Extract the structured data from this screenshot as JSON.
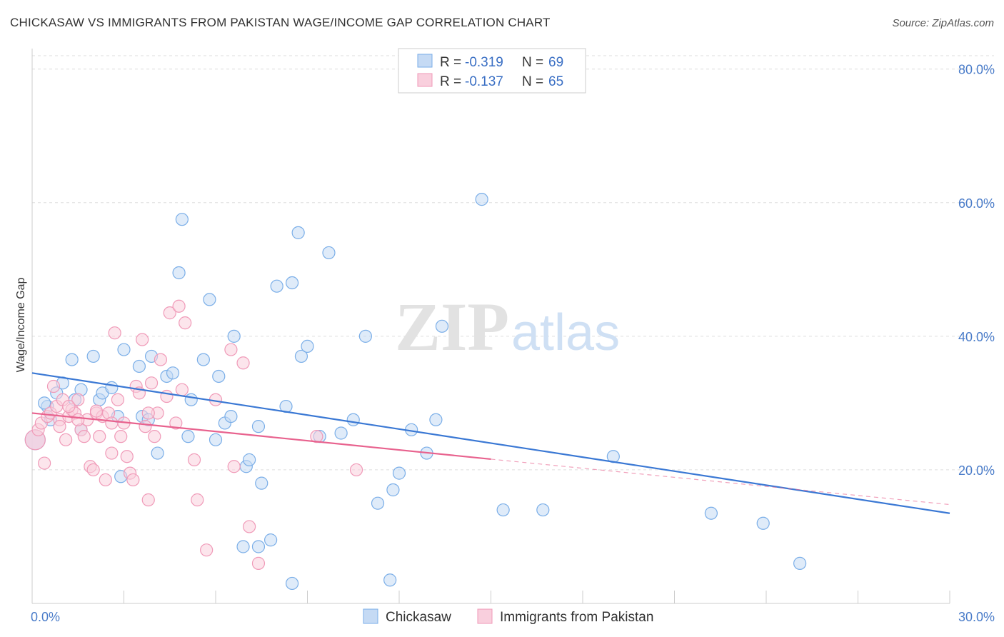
{
  "title": "CHICKASAW VS IMMIGRANTS FROM PAKISTAN WAGE/INCOME GAP CORRELATION CHART",
  "source": "Source: ZipAtlas.com",
  "chart_data": {
    "type": "scatter",
    "ylabel": "Wage/Income Gap",
    "xlim": [
      0,
      30
    ],
    "ylim": [
      0,
      82
    ],
    "x_tick_labels": [
      "0.0%",
      "30.0%"
    ],
    "y_ticks": [
      20,
      40,
      60,
      80
    ],
    "y_tick_labels": [
      "20.0%",
      "40.0%",
      "60.0%",
      "80.0%"
    ],
    "grid": true,
    "legend": {
      "position": "top-center",
      "entries": [
        {
          "r_label": "R =",
          "r_value": "-0.319",
          "n_label": "N =",
          "n_value": "69"
        },
        {
          "r_label": "R =",
          "r_value": "-0.137",
          "n_label": "N =",
          "n_value": "65"
        }
      ]
    },
    "series": [
      {
        "name": "Chickasaw",
        "color": "#7aaee8",
        "fill": "#c5daf4",
        "line_color": "#3a78d4",
        "trend": {
          "x0": 0,
          "y0": 34.5,
          "x1": 30,
          "y1": 13.5
        },
        "points": [
          [
            0.1,
            24.5
          ],
          [
            0.5,
            29.5
          ],
          [
            0.6,
            27.5
          ],
          [
            0.4,
            30.0
          ],
          [
            0.8,
            31.5
          ],
          [
            1.0,
            33.0
          ],
          [
            1.3,
            36.5
          ],
          [
            1.4,
            30.5
          ],
          [
            1.6,
            26.0
          ],
          [
            1.6,
            32.0
          ],
          [
            2.0,
            37.0
          ],
          [
            2.2,
            30.5
          ],
          [
            2.3,
            31.5
          ],
          [
            2.6,
            32.3
          ],
          [
            2.8,
            28.0
          ],
          [
            2.9,
            19.0
          ],
          [
            3.0,
            38.0
          ],
          [
            3.5,
            35.5
          ],
          [
            3.6,
            28.0
          ],
          [
            3.8,
            27.5
          ],
          [
            3.9,
            37.0
          ],
          [
            4.1,
            22.5
          ],
          [
            4.4,
            34.0
          ],
          [
            4.6,
            34.5
          ],
          [
            4.8,
            49.5
          ],
          [
            4.9,
            57.5
          ],
          [
            5.1,
            25.0
          ],
          [
            5.2,
            30.5
          ],
          [
            5.6,
            36.5
          ],
          [
            5.8,
            45.5
          ],
          [
            6.0,
            24.5
          ],
          [
            6.1,
            34.0
          ],
          [
            6.3,
            27.0
          ],
          [
            6.5,
            28.0
          ],
          [
            6.6,
            40.0
          ],
          [
            7.0,
            20.5
          ],
          [
            7.1,
            21.5
          ],
          [
            7.4,
            26.5
          ],
          [
            7.5,
            18.0
          ],
          [
            7.8,
            9.5
          ],
          [
            8.0,
            47.5
          ],
          [
            8.3,
            29.5
          ],
          [
            8.5,
            48.0
          ],
          [
            8.7,
            55.5
          ],
          [
            8.8,
            37.0
          ],
          [
            9.0,
            38.5
          ],
          [
            9.4,
            25.0
          ],
          [
            9.7,
            52.5
          ],
          [
            10.1,
            25.5
          ],
          [
            10.5,
            27.5
          ],
          [
            10.9,
            40.0
          ],
          [
            11.3,
            15.0
          ],
          [
            11.7,
            3.5
          ],
          [
            11.8,
            17.0
          ],
          [
            12.0,
            19.5
          ],
          [
            12.4,
            26.0
          ],
          [
            12.9,
            22.5
          ],
          [
            13.2,
            27.5
          ],
          [
            13.4,
            41.5
          ],
          [
            14.7,
            60.5
          ],
          [
            15.4,
            14.0
          ],
          [
            16.7,
            14.0
          ],
          [
            19.0,
            22.0
          ],
          [
            22.2,
            13.5
          ],
          [
            23.9,
            12.0
          ],
          [
            25.1,
            6.0
          ],
          [
            7.4,
            8.5
          ],
          [
            8.5,
            3.0
          ],
          [
            6.9,
            8.5
          ]
        ]
      },
      {
        "name": "Immigrants from Pakistan",
        "color": "#f09ab8",
        "fill": "#f9cfdd",
        "line_color": "#e8628e",
        "trend": {
          "x0": 0,
          "y0": 28.5,
          "x1": 15,
          "y1": 21.6
        },
        "trend_ext": {
          "x0": 15,
          "y0": 21.6,
          "x1": 30,
          "y1": 14.8
        },
        "points": [
          [
            0.1,
            24.5
          ],
          [
            0.2,
            26.0
          ],
          [
            0.3,
            27.0
          ],
          [
            0.4,
            21.0
          ],
          [
            0.5,
            28.0
          ],
          [
            0.6,
            28.5
          ],
          [
            0.7,
            32.5
          ],
          [
            0.8,
            29.5
          ],
          [
            0.9,
            27.5
          ],
          [
            1.0,
            30.5
          ],
          [
            1.1,
            24.5
          ],
          [
            1.2,
            28.0
          ],
          [
            1.3,
            29.0
          ],
          [
            1.4,
            28.5
          ],
          [
            1.5,
            30.5
          ],
          [
            1.6,
            26.0
          ],
          [
            1.7,
            25.0
          ],
          [
            1.8,
            27.5
          ],
          [
            1.9,
            20.5
          ],
          [
            2.0,
            20.0
          ],
          [
            2.1,
            28.5
          ],
          [
            2.2,
            25.0
          ],
          [
            2.3,
            28.0
          ],
          [
            2.4,
            18.5
          ],
          [
            2.5,
            28.5
          ],
          [
            2.6,
            22.5
          ],
          [
            2.7,
            40.5
          ],
          [
            2.8,
            30.5
          ],
          [
            2.9,
            25.0
          ],
          [
            3.0,
            27.0
          ],
          [
            3.1,
            22.0
          ],
          [
            3.2,
            19.5
          ],
          [
            3.3,
            18.5
          ],
          [
            3.4,
            32.5
          ],
          [
            3.5,
            31.5
          ],
          [
            3.6,
            39.5
          ],
          [
            3.7,
            26.5
          ],
          [
            3.8,
            15.5
          ],
          [
            3.9,
            33.0
          ],
          [
            4.0,
            25.0
          ],
          [
            4.1,
            28.5
          ],
          [
            4.2,
            36.5
          ],
          [
            4.4,
            31.0
          ],
          [
            4.5,
            43.5
          ],
          [
            4.7,
            27.0
          ],
          [
            4.8,
            44.5
          ],
          [
            4.9,
            32.0
          ],
          [
            5.0,
            42.0
          ],
          [
            5.3,
            21.5
          ],
          [
            5.4,
            15.5
          ],
          [
            5.7,
            8.0
          ],
          [
            6.0,
            30.5
          ],
          [
            6.5,
            38.0
          ],
          [
            6.6,
            20.5
          ],
          [
            6.9,
            36.0
          ],
          [
            7.4,
            6.0
          ],
          [
            7.1,
            11.5
          ],
          [
            9.3,
            25.0
          ],
          [
            10.6,
            20.0
          ],
          [
            1.5,
            27.5
          ],
          [
            2.1,
            28.8
          ],
          [
            1.2,
            29.5
          ],
          [
            0.9,
            26.5
          ],
          [
            3.8,
            28.5
          ],
          [
            2.6,
            27.0
          ]
        ]
      }
    ]
  }
}
